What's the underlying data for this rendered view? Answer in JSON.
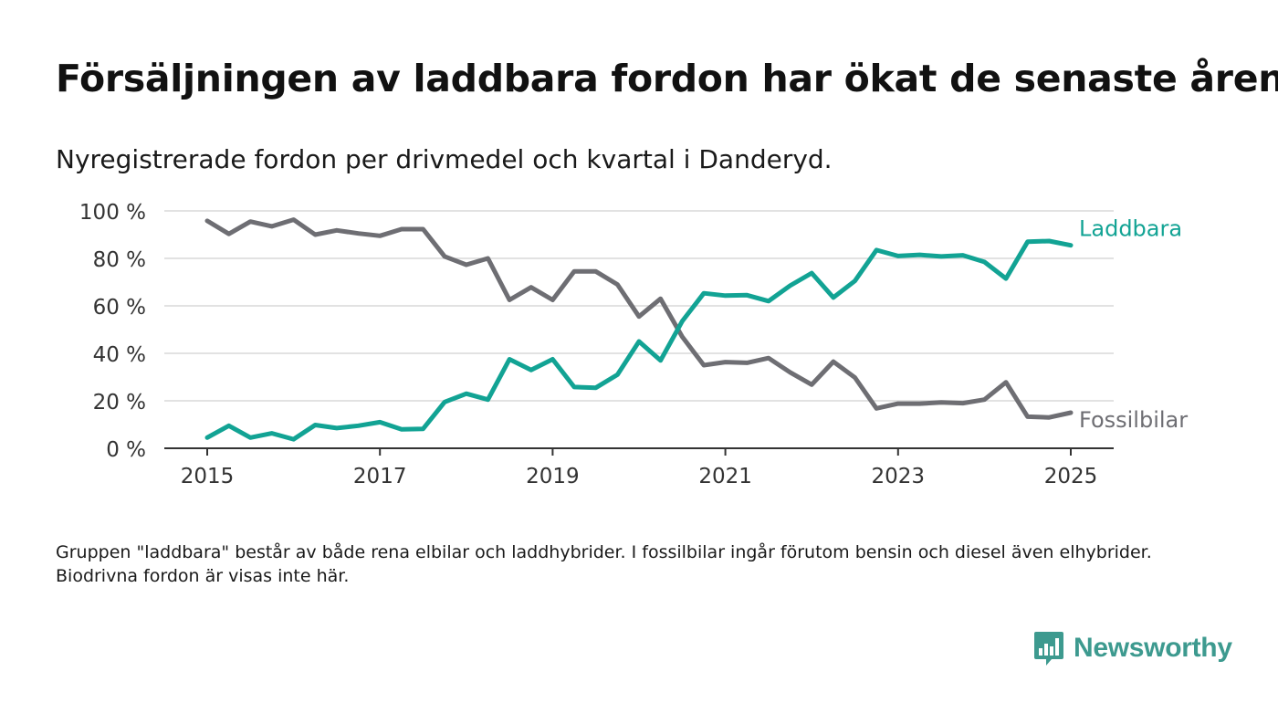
{
  "header": {
    "title": "Försäljningen av laddbara fordon har ökat de senaste åren",
    "subtitle": "Nyregistrerade fordon per drivmedel och kvartal i Danderyd."
  },
  "footnote": "Gruppen \"laddbara\" består av både rena elbilar och laddhybrider. I fossilbilar ingår förutom bensin och diesel även elhybrider. Biodrivna fordon är visas inte här.",
  "brand": {
    "name": "Newsworthy",
    "icon": "newsworthy-logo-icon",
    "color": "#3d9a8f"
  },
  "chart_data": {
    "type": "line",
    "ylim": [
      0,
      100
    ],
    "xlim": [
      2015,
      2025.5
    ],
    "y_ticks": [
      "0 %",
      "20 %",
      "40 %",
      "60 %",
      "80 %",
      "100 %"
    ],
    "y_tick_values": [
      0,
      20,
      40,
      60,
      80,
      100
    ],
    "x_ticks": [
      "2015",
      "2017",
      "2019",
      "2021",
      "2023",
      "2025"
    ],
    "x_tick_values": [
      2015,
      2017,
      2019,
      2021,
      2023,
      2025
    ],
    "grid": true,
    "legend": "direct-labels-right",
    "x": [
      2015.0,
      2015.25,
      2015.5,
      2015.75,
      2016.0,
      2016.25,
      2016.5,
      2016.75,
      2017.0,
      2017.25,
      2017.5,
      2017.75,
      2018.0,
      2018.25,
      2018.5,
      2018.75,
      2019.0,
      2019.25,
      2019.5,
      2019.75,
      2020.0,
      2020.25,
      2020.5,
      2020.75,
      2021.0,
      2021.25,
      2021.5,
      2021.75,
      2022.0,
      2022.25,
      2022.5,
      2022.75,
      2023.0,
      2023.25,
      2023.5,
      2023.75,
      2024.0,
      2024.25,
      2024.5,
      2024.75,
      2025.0
    ],
    "series": [
      {
        "name": "Laddbara",
        "color": "#12a394",
        "values": [
          4.5,
          9.5,
          4.5,
          6.3,
          3.8,
          9.8,
          8.5,
          9.5,
          11,
          8,
          8.2,
          19.5,
          23,
          20.5,
          37.5,
          33,
          37.5,
          25.8,
          25.5,
          31,
          45,
          37,
          53.5,
          65.3,
          64.3,
          64.5,
          62,
          68.5,
          73.8,
          63.5,
          70.5,
          83.5,
          81,
          81.5,
          80.8,
          81.3,
          78.5,
          71.5,
          87,
          87.3,
          85.5
        ]
      },
      {
        "name": "Fossilbilar",
        "color": "#6e6e73",
        "values": [
          95.8,
          90.3,
          95.5,
          93.5,
          96.3,
          90,
          91.8,
          90.5,
          89.5,
          92.3,
          92.3,
          80.8,
          77.3,
          80,
          62.5,
          67.8,
          62.5,
          74.5,
          74.5,
          69,
          55.5,
          63,
          47,
          35,
          36.3,
          36,
          38,
          32,
          26.8,
          36.5,
          29.8,
          16.8,
          18.8,
          18.8,
          19.3,
          19,
          20.5,
          27.8,
          13.3,
          13,
          15
        ]
      }
    ]
  }
}
